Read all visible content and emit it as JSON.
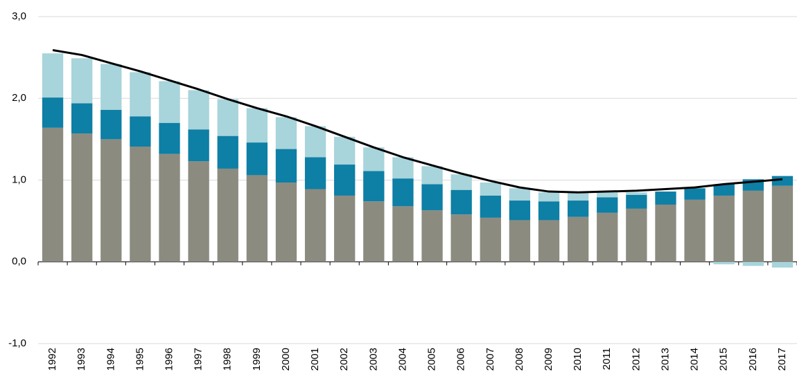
{
  "chart_data": {
    "type": "bar",
    "stacked": true,
    "categories": [
      "1992",
      "1993",
      "1994",
      "1995",
      "1996",
      "1997",
      "1998",
      "1999",
      "2000",
      "2001",
      "2002",
      "2003",
      "2004",
      "2005",
      "2006",
      "2007",
      "2008",
      "2009",
      "2010",
      "2011",
      "2012",
      "2013",
      "2014",
      "2015",
      "2016",
      "2017"
    ],
    "series": [
      {
        "color": "#8c8b80",
        "values": [
          1.64,
          1.57,
          1.5,
          1.41,
          1.32,
          1.23,
          1.14,
          1.06,
          0.97,
          0.89,
          0.81,
          0.74,
          0.68,
          0.63,
          0.58,
          0.54,
          0.51,
          0.51,
          0.55,
          0.6,
          0.65,
          0.7,
          0.76,
          0.81,
          0.87,
          0.93
        ]
      },
      {
        "color": "#0e7fa5",
        "values": [
          0.37,
          0.37,
          0.36,
          0.37,
          0.38,
          0.39,
          0.4,
          0.4,
          0.41,
          0.39,
          0.38,
          0.37,
          0.34,
          0.32,
          0.3,
          0.27,
          0.24,
          0.23,
          0.2,
          0.19,
          0.17,
          0.16,
          0.14,
          0.14,
          0.14,
          0.12
        ]
      },
      {
        "color": "#a8d4db",
        "values": [
          0.54,
          0.55,
          0.56,
          0.54,
          0.51,
          0.48,
          0.45,
          0.42,
          0.39,
          0.38,
          0.34,
          0.29,
          0.26,
          0.22,
          0.19,
          0.16,
          0.15,
          0.11,
          0.11,
          0.06,
          0.03,
          0,
          0,
          -0.03,
          -0.05,
          -0.07
        ]
      },
      {
        "type": "line",
        "color": "#000000",
        "values": [
          2.59,
          2.53,
          2.43,
          2.33,
          2.22,
          2.11,
          1.99,
          1.88,
          1.78,
          1.66,
          1.53,
          1.4,
          1.28,
          1.18,
          1.08,
          0.99,
          0.91,
          0.86,
          0.85,
          0.86,
          0.87,
          0.89,
          0.91,
          0.95,
          0.98,
          1.01
        ]
      }
    ],
    "ylim": [
      -1,
      3
    ],
    "yticks": [
      {
        "value": -1,
        "label": "-1,0"
      },
      {
        "value": 0,
        "label": "0,0"
      },
      {
        "value": 1,
        "label": "1,0"
      },
      {
        "value": 2,
        "label": "2,0"
      },
      {
        "value": 3,
        "label": "3,0"
      }
    ],
    "grid": true
  }
}
